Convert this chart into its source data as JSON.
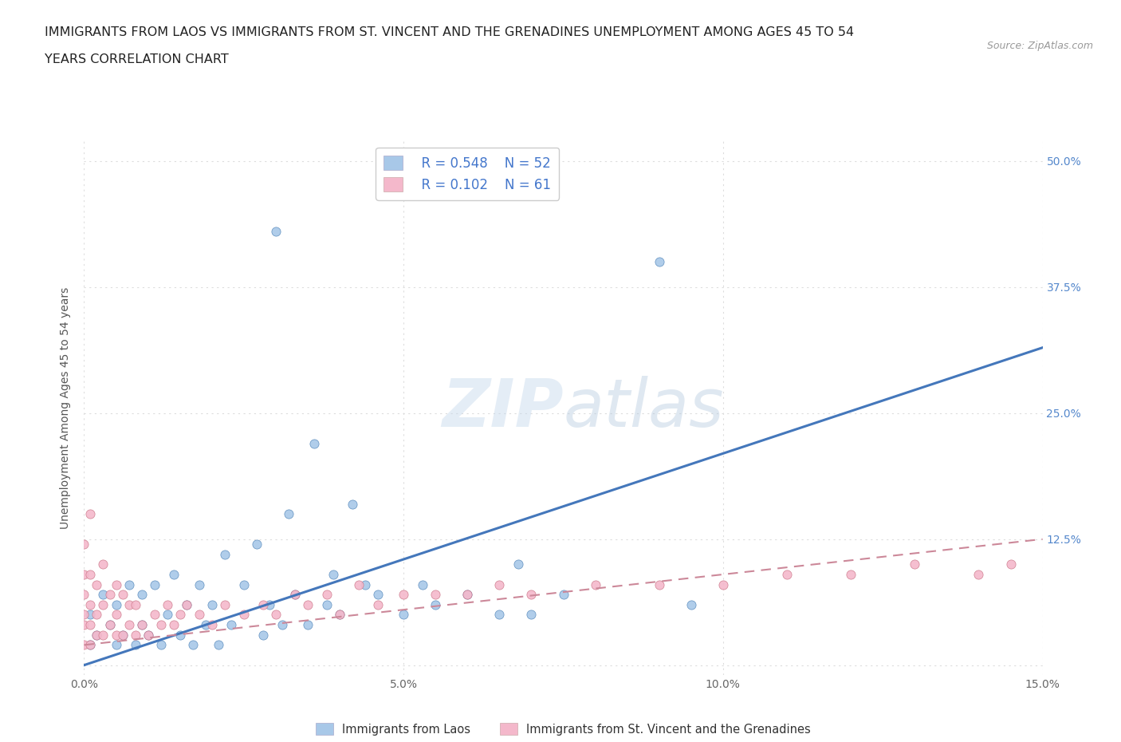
{
  "title_line1": "IMMIGRANTS FROM LAOS VS IMMIGRANTS FROM ST. VINCENT AND THE GRENADINES UNEMPLOYMENT AMONG AGES 45 TO 54",
  "title_line2": "YEARS CORRELATION CHART",
  "source_text": "Source: ZipAtlas.com",
  "ylabel": "Unemployment Among Ages 45 to 54 years",
  "xlim": [
    0.0,
    0.15
  ],
  "ylim": [
    -0.01,
    0.52
  ],
  "xtick_vals": [
    0.0,
    0.05,
    0.1,
    0.15
  ],
  "xtick_labels": [
    "0.0%",
    "5.0%",
    "10.0%",
    "15.0%"
  ],
  "ytick_vals": [
    0.0,
    0.125,
    0.25,
    0.375,
    0.5
  ],
  "right_ytick_vals": [
    0.0,
    0.125,
    0.25,
    0.375,
    0.5
  ],
  "right_ytick_labels": [
    "",
    "12.5%",
    "25.0%",
    "37.5%",
    "50.0%"
  ],
  "legend_R1": "R = 0.548",
  "legend_N1": "N = 52",
  "legend_R2": "R = 0.102",
  "legend_N2": "N = 61",
  "color_blue": "#a8c8e8",
  "color_pink": "#f4b8cb",
  "color_blue_edge": "#5588bb",
  "color_pink_edge": "#cc7788",
  "color_blue_line": "#4477bb",
  "color_pink_line": "#cc8899",
  "watermark_color": "#ccdde8",
  "legend_label1": "Immigrants from Laos",
  "legend_label2": "Immigrants from St. Vincent and the Grenadines",
  "scatter_blue_x": [
    0.001,
    0.001,
    0.002,
    0.003,
    0.004,
    0.005,
    0.005,
    0.006,
    0.007,
    0.008,
    0.009,
    0.009,
    0.01,
    0.011,
    0.012,
    0.013,
    0.014,
    0.015,
    0.016,
    0.017,
    0.018,
    0.019,
    0.02,
    0.021,
    0.022,
    0.023,
    0.025,
    0.027,
    0.028,
    0.029,
    0.03,
    0.031,
    0.032,
    0.033,
    0.035,
    0.036,
    0.038,
    0.039,
    0.04,
    0.042,
    0.044,
    0.046,
    0.05,
    0.053,
    0.055,
    0.06,
    0.065,
    0.068,
    0.07,
    0.075,
    0.09,
    0.095
  ],
  "scatter_blue_y": [
    0.02,
    0.05,
    0.03,
    0.07,
    0.04,
    0.02,
    0.06,
    0.03,
    0.08,
    0.02,
    0.04,
    0.07,
    0.03,
    0.08,
    0.02,
    0.05,
    0.09,
    0.03,
    0.06,
    0.02,
    0.08,
    0.04,
    0.06,
    0.02,
    0.11,
    0.04,
    0.08,
    0.12,
    0.03,
    0.06,
    0.43,
    0.04,
    0.15,
    0.07,
    0.04,
    0.22,
    0.06,
    0.09,
    0.05,
    0.16,
    0.08,
    0.07,
    0.05,
    0.08,
    0.06,
    0.07,
    0.05,
    0.1,
    0.05,
    0.07,
    0.4,
    0.06
  ],
  "scatter_pink_x": [
    0.0,
    0.0,
    0.0,
    0.0,
    0.0,
    0.0,
    0.001,
    0.001,
    0.001,
    0.001,
    0.001,
    0.002,
    0.002,
    0.002,
    0.003,
    0.003,
    0.003,
    0.004,
    0.004,
    0.005,
    0.005,
    0.005,
    0.006,
    0.006,
    0.007,
    0.007,
    0.008,
    0.008,
    0.009,
    0.01,
    0.011,
    0.012,
    0.013,
    0.014,
    0.015,
    0.016,
    0.018,
    0.02,
    0.022,
    0.025,
    0.028,
    0.03,
    0.033,
    0.035,
    0.038,
    0.04,
    0.043,
    0.046,
    0.05,
    0.055,
    0.06,
    0.065,
    0.07,
    0.08,
    0.09,
    0.1,
    0.11,
    0.12,
    0.13,
    0.14,
    0.145
  ],
  "scatter_pink_y": [
    0.02,
    0.04,
    0.05,
    0.07,
    0.09,
    0.12,
    0.02,
    0.04,
    0.06,
    0.09,
    0.15,
    0.03,
    0.05,
    0.08,
    0.03,
    0.06,
    0.1,
    0.04,
    0.07,
    0.03,
    0.05,
    0.08,
    0.03,
    0.07,
    0.04,
    0.06,
    0.03,
    0.06,
    0.04,
    0.03,
    0.05,
    0.04,
    0.06,
    0.04,
    0.05,
    0.06,
    0.05,
    0.04,
    0.06,
    0.05,
    0.06,
    0.05,
    0.07,
    0.06,
    0.07,
    0.05,
    0.08,
    0.06,
    0.07,
    0.07,
    0.07,
    0.08,
    0.07,
    0.08,
    0.08,
    0.08,
    0.09,
    0.09,
    0.1,
    0.09,
    0.1
  ],
  "blue_line_x": [
    0.0,
    0.15
  ],
  "blue_line_y": [
    0.0,
    0.315
  ],
  "pink_line_x": [
    0.0,
    0.15
  ],
  "pink_line_y": [
    0.02,
    0.125
  ],
  "bg_color": "#ffffff",
  "grid_color": "#dddddd",
  "title_fontsize": 11.5,
  "axis_label_fontsize": 10,
  "tick_fontsize": 10,
  "right_tick_color": "#5588cc"
}
